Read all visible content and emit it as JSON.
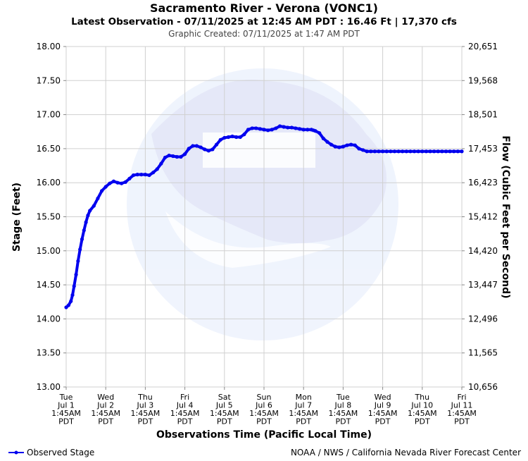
{
  "chart_data": {
    "type": "line",
    "title": "Sacramento River - Verona (VONC1)",
    "subtitle": "Latest Observation - 07/11/2025 at 12:45 AM PDT : 16.46 Ft | 17,370 cfs",
    "created": "Graphic Created: 07/11/2025 at 1:47 AM PDT",
    "xlabel": "Observations Time (Pacific Local Time)",
    "ylabel": "Stage (Feet)",
    "y2label": "Flow (Cubic Feet per Second)",
    "ylim": [
      13.0,
      18.0
    ],
    "xlim": [
      0,
      10
    ],
    "grid": true,
    "legend_position": "bottom-left",
    "credit": "NOAA / NWS / California Nevada River Forecast Center",
    "series_color": "#0000ee",
    "y_ticks": [
      "13.00",
      "13.50",
      "14.00",
      "14.50",
      "15.00",
      "15.50",
      "16.00",
      "16.50",
      "17.00",
      "17.50",
      "18.00"
    ],
    "y2_ticks": [
      "10,656",
      "11,565",
      "12,496",
      "13,447",
      "14,420",
      "15,412",
      "16,423",
      "17,453",
      "18,501",
      "19,568",
      "20,651"
    ],
    "x_ticks": [
      {
        "day": "Tue",
        "date": "Jul 1",
        "time": "1:45AM",
        "tz": "PDT"
      },
      {
        "day": "Wed",
        "date": "Jul 2",
        "time": "1:45AM",
        "tz": "PDT"
      },
      {
        "day": "Thu",
        "date": "Jul 3",
        "time": "1:45AM",
        "tz": "PDT"
      },
      {
        "day": "Fri",
        "date": "Jul 4",
        "time": "1:45AM",
        "tz": "PDT"
      },
      {
        "day": "Sat",
        "date": "Jul 5",
        "time": "1:45AM",
        "tz": "PDT"
      },
      {
        "day": "Sun",
        "date": "Jul 6",
        "time": "1:45AM",
        "tz": "PDT"
      },
      {
        "day": "Mon",
        "date": "Jul 7",
        "time": "1:45AM",
        "tz": "PDT"
      },
      {
        "day": "Tue",
        "date": "Jul 8",
        "time": "1:45AM",
        "tz": "PDT"
      },
      {
        "day": "Wed",
        "date": "Jul 9",
        "time": "1:45AM",
        "tz": "PDT"
      },
      {
        "day": "Thu",
        "date": "Jul 10",
        "time": "1:45AM",
        "tz": "PDT"
      },
      {
        "day": "Fri",
        "date": "Jul 11",
        "time": "1:45AM",
        "tz": "PDT"
      }
    ],
    "series": [
      {
        "name": "Observed Stage",
        "x": [
          0.0,
          0.06,
          0.12,
          0.16,
          0.2,
          0.25,
          0.3,
          0.35,
          0.4,
          0.45,
          0.5,
          0.55,
          0.6,
          0.7,
          0.8,
          0.9,
          1.0,
          1.1,
          1.2,
          1.3,
          1.4,
          1.5,
          1.6,
          1.7,
          1.8,
          1.9,
          2.0,
          2.1,
          2.2,
          2.3,
          2.4,
          2.5,
          2.6,
          2.7,
          2.8,
          2.9,
          3.0,
          3.1,
          3.2,
          3.3,
          3.4,
          3.5,
          3.6,
          3.7,
          3.8,
          3.9,
          4.0,
          4.1,
          4.2,
          4.3,
          4.4,
          4.5,
          4.6,
          4.7,
          4.8,
          4.9,
          5.0,
          5.1,
          5.2,
          5.3,
          5.4,
          5.5,
          5.6,
          5.7,
          5.8,
          5.9,
          6.0,
          6.1,
          6.2,
          6.25,
          6.3,
          6.4,
          6.5,
          6.6,
          6.7,
          6.8,
          6.9,
          7.0,
          7.1,
          7.2,
          7.3,
          7.4,
          7.5,
          7.6,
          7.7,
          7.8,
          7.9,
          8.0,
          8.1,
          8.2,
          8.3,
          8.4,
          8.5,
          8.6,
          8.7,
          8.8,
          8.9,
          9.0,
          9.1,
          9.2,
          9.3,
          9.4,
          9.5,
          9.6,
          9.7,
          9.8,
          9.9,
          10.0
        ],
        "values": [
          14.17,
          14.2,
          14.26,
          14.35,
          14.48,
          14.65,
          14.85,
          15.02,
          15.17,
          15.3,
          15.42,
          15.52,
          15.59,
          15.66,
          15.77,
          15.88,
          15.94,
          15.99,
          16.02,
          16.0,
          15.99,
          16.01,
          16.06,
          16.11,
          16.12,
          16.12,
          16.12,
          16.11,
          16.15,
          16.2,
          16.28,
          16.37,
          16.4,
          16.39,
          16.38,
          16.38,
          16.42,
          16.5,
          16.54,
          16.54,
          16.52,
          16.49,
          16.47,
          16.49,
          16.56,
          16.63,
          16.66,
          16.67,
          16.68,
          16.67,
          16.67,
          16.71,
          16.78,
          16.8,
          16.8,
          16.79,
          16.78,
          16.77,
          16.78,
          16.8,
          16.83,
          16.82,
          16.81,
          16.81,
          16.8,
          16.79,
          16.78,
          16.78,
          16.78,
          16.77,
          16.76,
          16.73,
          16.65,
          16.6,
          16.56,
          16.53,
          16.52,
          16.53,
          16.55,
          16.56,
          16.55,
          16.5,
          16.48,
          16.46,
          16.46,
          16.46,
          16.46,
          16.46,
          16.46,
          16.46,
          16.46,
          16.46,
          16.46,
          16.46,
          16.46,
          16.46,
          16.46,
          16.46,
          16.46,
          16.46,
          16.46,
          16.46,
          16.46,
          16.46,
          16.46,
          16.46,
          16.46,
          16.46
        ]
      }
    ]
  }
}
